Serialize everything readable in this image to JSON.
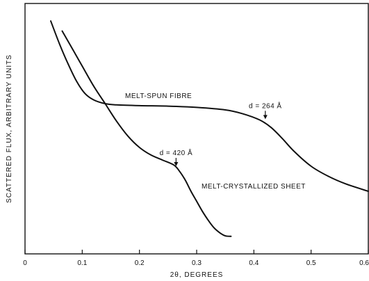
{
  "chart_data": {
    "type": "line",
    "xlabel": "2θ, DEGREES",
    "ylabel": "SCATTERED FLUX, ARBITRARY UNITS",
    "xlim": [
      0,
      0.6
    ],
    "x_ticks": [
      {
        "value": 0,
        "label": "0"
      },
      {
        "value": 0.1,
        "label": "0.1"
      },
      {
        "value": 0.2,
        "label": "0.2"
      },
      {
        "value": 0.3,
        "label": "0.3"
      },
      {
        "value": 0.4,
        "label": "0.4"
      },
      {
        "value": 0.5,
        "label": "0.5"
      },
      {
        "value": 0.6,
        "label": "0.6"
      }
    ],
    "y_tick_labels": false,
    "grid": false,
    "series": [
      {
        "name": "MELT-SPUN FIBRE",
        "x": [
          0.045,
          0.06,
          0.075,
          0.09,
          0.105,
          0.12,
          0.14,
          0.16,
          0.2,
          0.25,
          0.3,
          0.35,
          0.38,
          0.41,
          0.43,
          0.45,
          0.47,
          0.5,
          0.53,
          0.56,
          0.6
        ],
        "y": [
          9.3,
          8.4,
          7.6,
          6.9,
          6.4,
          6.15,
          6.0,
          5.95,
          5.92,
          5.9,
          5.85,
          5.75,
          5.6,
          5.35,
          5.05,
          4.6,
          4.1,
          3.5,
          3.1,
          2.8,
          2.5
        ]
      },
      {
        "name": "MELT-CRYSTALLIZED SHEET",
        "x": [
          0.065,
          0.085,
          0.1,
          0.12,
          0.14,
          0.16,
          0.18,
          0.2,
          0.22,
          0.24,
          0.26,
          0.27,
          0.28,
          0.29,
          0.3,
          0.31,
          0.32,
          0.33,
          0.34,
          0.35,
          0.36
        ],
        "y": [
          8.9,
          8.1,
          7.5,
          6.7,
          6.0,
          5.3,
          4.7,
          4.25,
          3.95,
          3.75,
          3.55,
          3.3,
          2.95,
          2.5,
          2.1,
          1.7,
          1.35,
          1.05,
          0.85,
          0.72,
          0.7
        ]
      }
    ],
    "annotations": [
      {
        "text": "d = 264 Å",
        "x": 0.42,
        "y": 5.38
      },
      {
        "text": "d = 420 Å",
        "x": 0.264,
        "y": 3.5
      }
    ]
  }
}
